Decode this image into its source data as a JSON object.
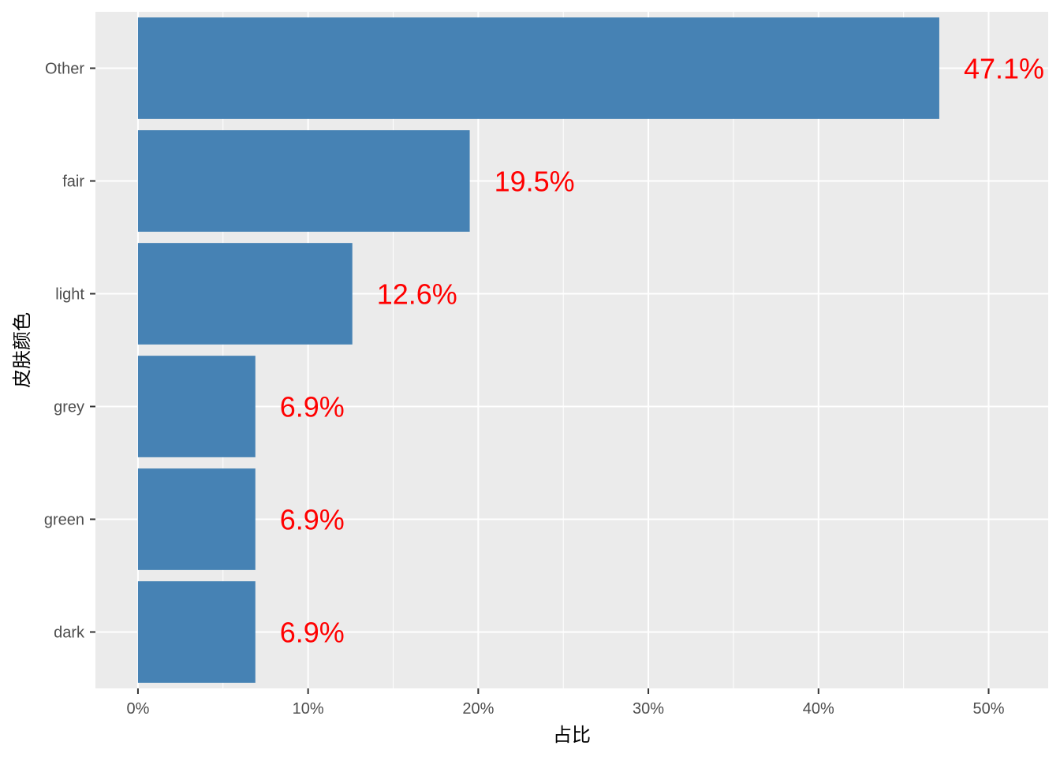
{
  "chart_data": {
    "type": "bar",
    "orientation": "horizontal",
    "categories": [
      "Other",
      "fair",
      "light",
      "grey",
      "green",
      "dark"
    ],
    "values": [
      47.1,
      19.5,
      12.6,
      6.9,
      6.9,
      6.9
    ],
    "data_labels": [
      "47.1%",
      "19.5%",
      "12.6%",
      "6.9%",
      "6.9%",
      "6.9%"
    ],
    "xlabel": "占比",
    "ylabel": "皮肤颜色",
    "xlim": [
      -2.5,
      53.5
    ],
    "x_ticks": [
      0,
      10,
      20,
      30,
      40,
      50
    ],
    "x_tick_labels": [
      "0%",
      "10%",
      "20%",
      "30%",
      "40%",
      "50%"
    ],
    "grid": true,
    "colors": {
      "bar": "#4682B4",
      "label": "#FF0000",
      "panel": "#EBEBEB",
      "grid": "#FFFFFF"
    }
  }
}
